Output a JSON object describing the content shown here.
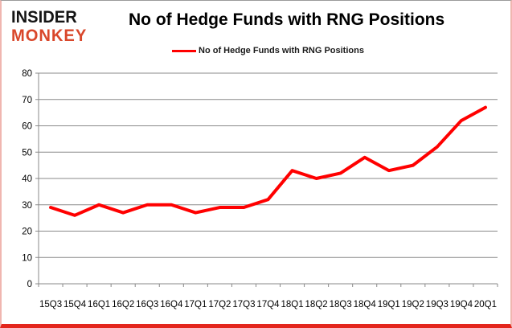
{
  "branding": {
    "logo_line1": "INSIDER",
    "logo_line2": "MONKEY"
  },
  "header": {
    "title": "No of Hedge Funds with RNG Positions"
  },
  "legend": {
    "label": "No of Hedge Funds with RNG Positions"
  },
  "colors": {
    "line": "#ff0000",
    "grid": "#898989",
    "axis_text": "#000000",
    "logo_black": "#151515",
    "logo_red": "#d9472b",
    "frame_bottom": "#e3261d"
  },
  "chart_data": {
    "type": "line",
    "title": "No of Hedge Funds with RNG Positions",
    "xlabel": "",
    "ylabel": "",
    "grid": true,
    "legend_position": "top",
    "ylim": [
      0,
      80
    ],
    "y_ticks": [
      0,
      10,
      20,
      30,
      40,
      50,
      60,
      70,
      80
    ],
    "categories": [
      "15Q3",
      "15Q4",
      "16Q1",
      "16Q2",
      "16Q3",
      "16Q4",
      "17Q1",
      "17Q2",
      "17Q3",
      "17Q4",
      "18Q1",
      "18Q2",
      "18Q3",
      "18Q4",
      "19Q1",
      "19Q2",
      "19Q3",
      "19Q4",
      "20Q1"
    ],
    "series": [
      {
        "name": "No of Hedge Funds with RNG Positions",
        "color": "#ff0000",
        "values": [
          29,
          26,
          30,
          27,
          30,
          30,
          27,
          29,
          29,
          32,
          43,
          40,
          42,
          48,
          43,
          45,
          52,
          62,
          67
        ]
      }
    ]
  }
}
